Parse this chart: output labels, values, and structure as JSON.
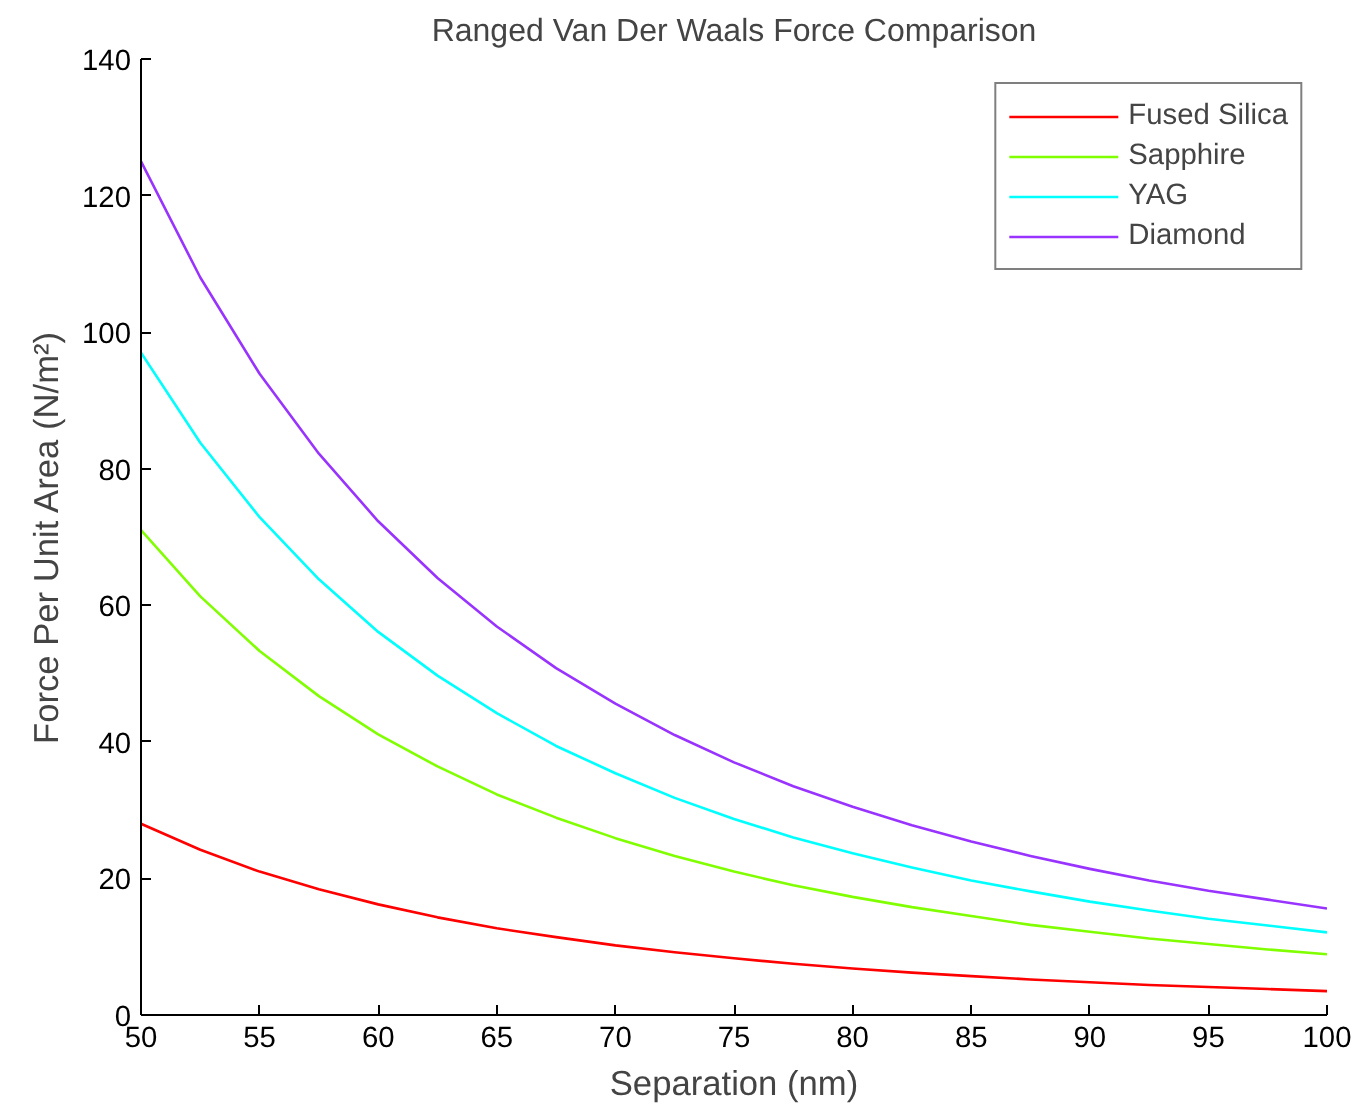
{
  "chart_data": {
    "type": "line",
    "title": "Ranged Van Der Waals Force Comparison",
    "xlabel": "Separation (nm)",
    "ylabel": "Force Per Unit Area (N/m²)",
    "x": [
      50,
      52.5,
      55,
      57.5,
      60,
      62.5,
      65,
      67.5,
      70,
      72.5,
      75,
      77.5,
      80,
      82.5,
      85,
      87.5,
      90,
      92.5,
      95,
      97.5,
      100
    ],
    "series": [
      {
        "name": "Fused Silica",
        "color": "#ff0000",
        "values": [
          28,
          24.2,
          21,
          18.4,
          16.2,
          14.3,
          12.7,
          11.4,
          10.2,
          9.2,
          8.3,
          7.5,
          6.8,
          6.2,
          5.7,
          5.2,
          4.8,
          4.4,
          4.1,
          3.8,
          3.5
        ]
      },
      {
        "name": "Sapphire",
        "color": "#80ff00",
        "values": [
          71,
          61.3,
          53.3,
          46.7,
          41.1,
          36.4,
          32.3,
          28.9,
          25.9,
          23.3,
          21,
          19,
          17.3,
          15.8,
          14.5,
          13.2,
          12.2,
          11.2,
          10.4,
          9.6,
          8.9
        ]
      },
      {
        "name": "YAG",
        "color": "#00ffff",
        "values": [
          97,
          83.8,
          72.9,
          63.8,
          56.1,
          49.7,
          44.2,
          39.4,
          35.4,
          31.8,
          28.7,
          26,
          23.7,
          21.6,
          19.7,
          18.1,
          16.6,
          15.3,
          14.1,
          13.1,
          12.1
        ]
      },
      {
        "name": "Diamond",
        "color": "#9933ff",
        "values": [
          125,
          108,
          93.9,
          82.2,
          72.3,
          64,
          56.9,
          50.8,
          45.6,
          41,
          37,
          33.5,
          30.5,
          27.8,
          25.4,
          23.3,
          21.4,
          19.7,
          18.2,
          16.9,
          15.6
        ]
      }
    ],
    "xlim": [
      50,
      100
    ],
    "ylim": [
      0,
      140
    ],
    "xticks": [
      50,
      55,
      60,
      65,
      70,
      75,
      80,
      85,
      90,
      95,
      100
    ],
    "yticks": [
      0,
      20,
      40,
      60,
      80,
      100,
      120,
      140
    ],
    "grid": false,
    "legend": "top right",
    "line_style": "solid",
    "marker": "none"
  }
}
